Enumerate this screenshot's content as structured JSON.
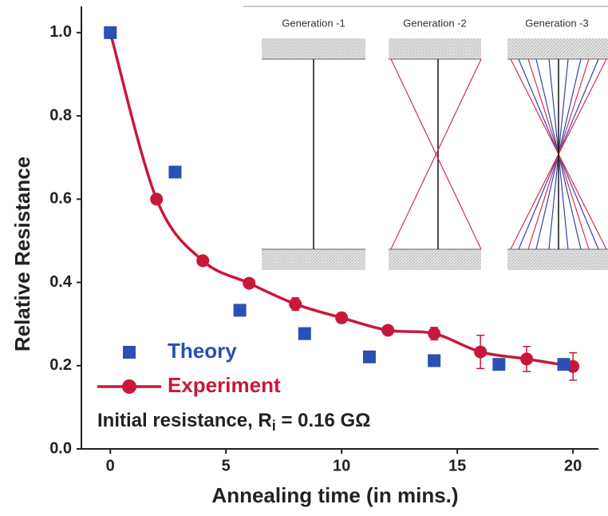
{
  "chart_data": {
    "type": "scatter",
    "x_label": "Annealing time (in mins.)",
    "y_label": "Relative Resistance",
    "xlim": [
      -1.25,
      21.1
    ],
    "ylim": [
      0,
      1.063
    ],
    "xticks": [
      0,
      5,
      10,
      15,
      20
    ],
    "yticks": [
      {
        "value": 0,
        "label": "0.0"
      },
      0.2,
      0.4,
      0.6,
      0.8,
      {
        "value": 1,
        "label": "1.0"
      }
    ],
    "series": [
      {
        "name": "Experiment",
        "color": "#c8183a",
        "marker": "circle",
        "line": true,
        "x": [
          0,
          2,
          4,
          6,
          8,
          10,
          12,
          14,
          16,
          18,
          20
        ],
        "values": [
          1.0,
          0.6,
          0.452,
          0.398,
          0.348,
          0.315,
          0.285,
          0.277,
          0.233,
          0.216,
          0.198
        ],
        "errors": [
          0,
          0,
          0,
          0.01,
          0.015,
          0.012,
          0.01,
          0.015,
          0.04,
          0.03,
          0.033
        ]
      },
      {
        "name": "Theory",
        "color": "#2b4fb5",
        "marker": "square",
        "line": false,
        "x": [
          0,
          2.8,
          5.6,
          8.4,
          11.2,
          14,
          16.8,
          19.6
        ],
        "values": [
          1.0,
          0.665,
          0.333,
          0.277,
          0.221,
          0.212,
          0.203,
          0.203
        ]
      }
    ],
    "annotation": {
      "text": "Initial resistance, R",
      "subscript": "i",
      "suffix": " = 0.16 GΩ"
    },
    "inset_labels": [
      "Generation -1",
      "Generation -2",
      "Generation -3"
    ]
  }
}
